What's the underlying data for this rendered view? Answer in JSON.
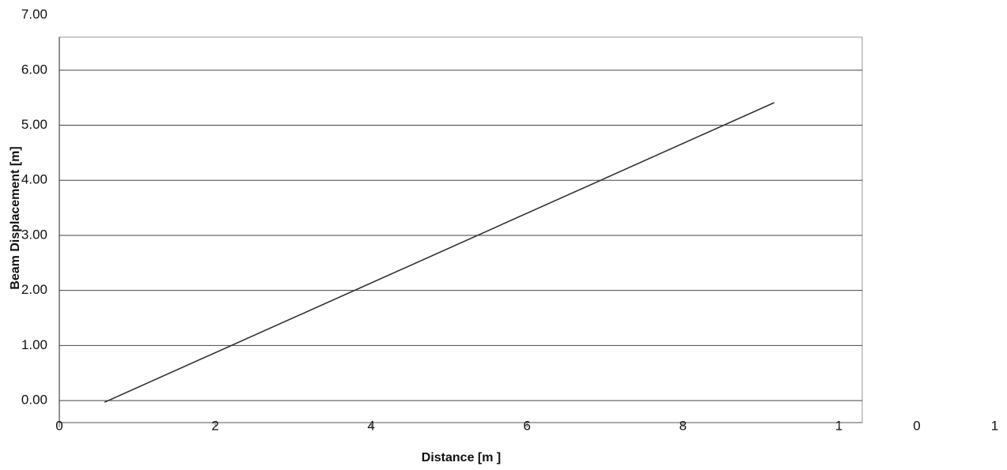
{
  "chart_data": {
    "type": "line",
    "xlabel": "Distance  [m ]",
    "ylabel": "Beam Displacement [m]",
    "x": [
      0.58,
      9.17
    ],
    "series": [
      {
        "name": "Displacement",
        "color": "#333333",
        "values": [
          -0.03,
          5.41
        ]
      }
    ],
    "xlim": [
      0,
      10.3
    ],
    "ylim": [
      -0.4,
      6.6
    ],
    "xticks": [
      0,
      2,
      4,
      6,
      8,
      {
        "value": 10,
        "label": "1"
      },
      {
        "value": 11,
        "label": "0"
      },
      {
        "value": 12,
        "label": "1"
      }
    ],
    "yticks": [
      {
        "value": 0,
        "label": "0.00"
      },
      {
        "value": 1,
        "label": "1.00"
      },
      {
        "value": 2,
        "label": "2.00"
      },
      {
        "value": 3,
        "label": "3.00"
      },
      {
        "value": 4,
        "label": "4.00"
      },
      {
        "value": 5,
        "label": "5.00"
      },
      {
        "value": 6,
        "label": "6.00"
      },
      {
        "value": 7,
        "label": "7.00"
      }
    ],
    "grid": true
  }
}
